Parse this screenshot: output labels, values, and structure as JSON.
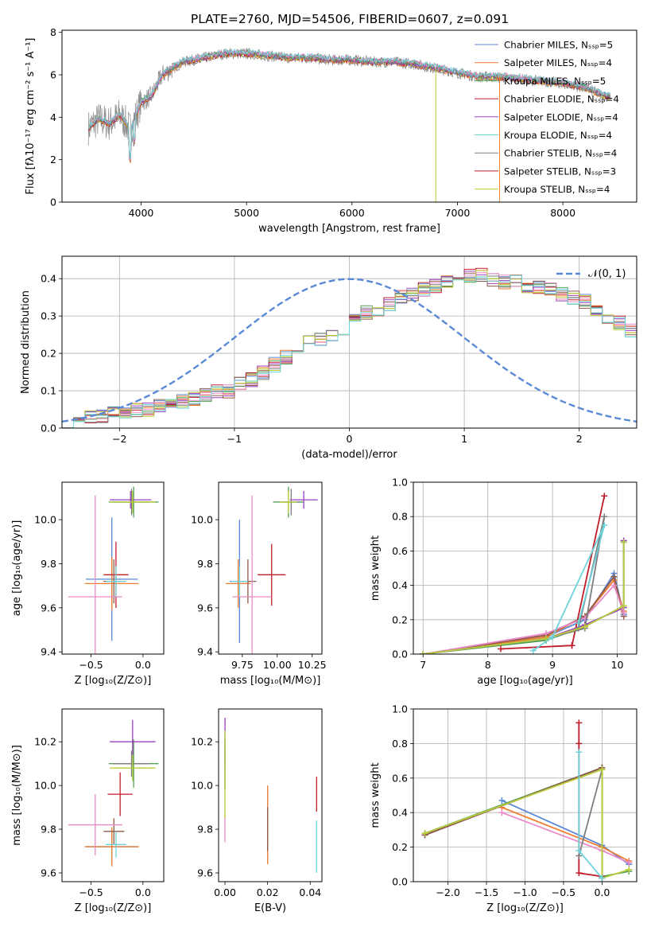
{
  "figure_title": "PLATE=2760, MJD=54506, FIBERID=0607, z=0.091",
  "model_colors": [
    "#5a8ad6",
    "#ef7e30",
    "#55a055",
    "#c01d2a",
    "#9b3fbf",
    "#8e5b4a",
    "#e98ac8",
    "#7e7e7e",
    "#b9cd3a",
    "#6ed3db"
  ],
  "chart_data": [
    {
      "id": "spectrum",
      "type": "line",
      "xlabel": "wavelength [Angstrom, rest frame]",
      "ylabel": "Flux [fλ10⁻¹⁷ erg cm⁻² s⁻¹ A⁻¹]",
      "xlim": [
        3250,
        8700
      ],
      "ylim": [
        0,
        8.1
      ],
      "xticks": [
        4000,
        5000,
        6000,
        7000,
        8000
      ],
      "yticks": [
        0,
        2,
        4,
        6,
        8
      ],
      "grid": false,
      "legend_position": "right",
      "continuum_x": [
        3500,
        3600,
        3700,
        3800,
        3900,
        4000,
        4100,
        4200,
        4400,
        4600,
        4800,
        5000,
        5200,
        5400,
        5600,
        5800,
        6000,
        6200,
        6400,
        6600,
        6800,
        7000,
        7200,
        7400,
        7600,
        7800,
        8000,
        8200,
        8400
      ],
      "continuum_y": [
        3.5,
        3.9,
        3.7,
        4.1,
        3.4,
        4.7,
        5.0,
        6.0,
        6.6,
        6.8,
        7.0,
        7.0,
        6.9,
        6.8,
        6.8,
        6.7,
        6.7,
        6.6,
        6.6,
        6.5,
        6.3,
        6.1,
        5.9,
        5.9,
        5.8,
        5.7,
        5.6,
        5.4,
        5.0
      ],
      "series": [
        {
          "name": "Chabrier MILES, Nₛₛₚ=5"
        },
        {
          "name": "Salpeter MILES, Nₛₛₚ=4"
        },
        {
          "name": "Kroupa MILES, Nₛₛₚ=5"
        },
        {
          "name": "Chabrier ELODIE, Nₛₛₚ=4"
        },
        {
          "name": "Salpeter ELODIE, Nₛₛₚ=4"
        },
        {
          "name": "Kroupa ELODIE, Nₛₛₚ=4"
        },
        {
          "name": "Chabrier STELIB, Nₛₛₚ=4"
        },
        {
          "name": "Salpeter STELIB, Nₛₛₚ=3"
        },
        {
          "name": "Kroupa STELIB, Nₛₛₚ=4"
        }
      ]
    },
    {
      "id": "residuals",
      "type": "line",
      "xlabel": "(data-model)/error",
      "ylabel": "Normed distribution",
      "xlim": [
        -2.5,
        2.5
      ],
      "ylim": [
        0,
        0.46
      ],
      "xticks": [
        -2,
        -1,
        0,
        1,
        2
      ],
      "yticks": [
        0.0,
        0.1,
        0.2,
        0.3,
        0.4
      ],
      "grid": true,
      "legend_position": "top-right",
      "gaussian_label": "𝒩(0, 1)",
      "bin_width": 0.1,
      "hist_base": [
        0.02,
        0.02,
        0.03,
        0.03,
        0.04,
        0.04,
        0.05,
        0.05,
        0.06,
        0.07,
        0.07,
        0.08,
        0.09,
        0.1,
        0.1,
        0.12,
        0.13,
        0.15,
        0.17,
        0.19,
        0.21,
        0.23,
        0.24,
        0.25,
        0.27,
        0.29,
        0.31,
        0.32,
        0.33,
        0.35,
        0.36,
        0.37,
        0.38,
        0.39,
        0.4,
        0.41,
        0.41,
        0.4,
        0.39,
        0.39,
        0.38,
        0.38,
        0.37,
        0.36,
        0.35,
        0.34,
        0.32,
        0.3,
        0.28,
        0.26,
        0.25,
        0.24,
        0.22,
        0.2,
        0.18,
        0.16,
        0.14,
        0.12,
        0.11,
        0.1,
        0.09,
        0.08,
        0.07,
        0.07,
        0.06,
        0.05,
        0.05,
        0.04,
        0.04,
        0.03
      ]
    },
    {
      "id": "age-vs-Z",
      "type": "scatter",
      "xlabel": "Z [log₁₀(Z/Z⊙)]",
      "ylabel": "age  [log₁₀(age/yr)]",
      "xlim": [
        -0.78,
        0.2
      ],
      "ylim": [
        9.39,
        10.17
      ],
      "xticks": [
        -0.5,
        0.0
      ],
      "yticks": [
        9.4,
        9.6,
        9.8,
        10.0
      ],
      "grid": false,
      "points": [
        {
          "x": -0.3,
          "y": 9.73,
          "ex": 0.25,
          "ey": 0.28
        },
        {
          "x": -0.3,
          "y": 9.71,
          "ex": 0.26,
          "ey": 0.12
        },
        {
          "x": -0.09,
          "y": 10.08,
          "ex": 0.24,
          "ey": 0.07
        },
        {
          "x": -0.26,
          "y": 9.75,
          "ex": 0.12,
          "ey": 0.15
        },
        {
          "x": -0.12,
          "y": 10.09,
          "ex": 0.2,
          "ey": 0.04
        },
        {
          "x": -0.28,
          "y": 9.72,
          "ex": 0.1,
          "ey": 0.1
        },
        {
          "x": -0.46,
          "y": 9.65,
          "ex": 0.26,
          "ey": 0.46
        },
        {
          "x": -0.11,
          "y": 10.08,
          "ex": 0.18,
          "ey": 0.06
        },
        {
          "x": -0.1,
          "y": 10.08,
          "ex": 0.22,
          "ey": 0.05
        },
        {
          "x": -0.26,
          "y": 9.72,
          "ex": 0.1,
          "ey": 0.07
        }
      ]
    },
    {
      "id": "age-vs-mass",
      "type": "scatter",
      "xlabel": "mass [log₁₀(M/M⊙)]",
      "ylabel": "",
      "xlim": [
        9.58,
        10.32
      ],
      "ylim": [
        9.39,
        10.17
      ],
      "xticks": [
        9.75,
        10.0,
        10.25
      ],
      "yticks": [
        9.4,
        9.6,
        9.8,
        10.0
      ],
      "grid": false,
      "points": [
        {
          "x": 9.73,
          "y": 9.72,
          "ex": 0.07,
          "ey": 0.28
        },
        {
          "x": 9.72,
          "y": 9.71,
          "ex": 0.09,
          "ey": 0.11
        },
        {
          "x": 10.08,
          "y": 10.08,
          "ex": 0.11,
          "ey": 0.07
        },
        {
          "x": 9.96,
          "y": 9.75,
          "ex": 0.1,
          "ey": 0.14
        },
        {
          "x": 10.19,
          "y": 10.09,
          "ex": 0.1,
          "ey": 0.04
        },
        {
          "x": 9.79,
          "y": 9.72,
          "ex": 0.06,
          "ey": 0.1
        },
        {
          "x": 9.82,
          "y": 9.65,
          "ex": 0.14,
          "ey": 0.46
        },
        {
          "x": 10.1,
          "y": 10.08,
          "ex": 0.06,
          "ey": 0.06
        },
        {
          "x": 10.08,
          "y": 10.08,
          "ex": 0.06,
          "ey": 0.05
        },
        {
          "x": 9.73,
          "y": 9.72,
          "ex": 0.06,
          "ey": 0.07
        }
      ]
    },
    {
      "id": "mass-weight-vs-age",
      "type": "line",
      "xlabel": "age  [log₁₀(age/yr)]",
      "ylabel": "mass weight",
      "xlim": [
        6.85,
        10.3
      ],
      "ylim": [
        0,
        1.0
      ],
      "xticks": [
        7,
        8,
        9,
        10
      ],
      "yticks": [
        0.0,
        0.2,
        0.4,
        0.6,
        0.8,
        1.0
      ],
      "grid": true,
      "series": [
        {
          "x": [
            7.0,
            8.9,
            9.5,
            9.95,
            10.1
          ],
          "y": [
            0.0,
            0.1,
            0.2,
            0.47,
            0.23
          ]
        },
        {
          "x": [
            7.0,
            8.9,
            9.5,
            9.95,
            10.1
          ],
          "y": [
            0.0,
            0.1,
            0.22,
            0.43,
            0.25
          ]
        },
        {
          "x": [
            7.0,
            8.9,
            9.5,
            10.1,
            10.1
          ],
          "y": [
            0.0,
            0.08,
            0.16,
            0.28,
            0.66
          ]
        },
        {
          "x": [
            8.2,
            9.3,
            9.8,
            9.3
          ],
          "y": [
            0.03,
            0.05,
            0.92,
            0.05
          ]
        },
        {
          "x": [
            7.0,
            8.9,
            9.5,
            10.1,
            10.1
          ],
          "y": [
            0.0,
            0.09,
            0.17,
            0.27,
            0.66
          ]
        },
        {
          "x": [
            7.0,
            8.9,
            9.5,
            9.95,
            10.1
          ],
          "y": [
            0.0,
            0.11,
            0.22,
            0.45,
            0.22
          ]
        },
        {
          "x": [
            7.0,
            8.9,
            9.5,
            9.95,
            10.1
          ],
          "y": [
            0.0,
            0.12,
            0.21,
            0.4,
            0.24
          ]
        },
        {
          "x": [
            7.0,
            8.9,
            9.5,
            9.8,
            9.4
          ],
          "y": [
            0.0,
            0.09,
            0.15,
            0.8,
            0.15
          ]
        },
        {
          "x": [
            7.0,
            8.9,
            9.5,
            10.1,
            10.1
          ],
          "y": [
            0.0,
            0.09,
            0.16,
            0.28,
            0.65
          ]
        },
        {
          "x": [
            8.7,
            9.0,
            9.8,
            9.4
          ],
          "y": [
            0.02,
            0.1,
            0.75,
            0.18
          ]
        }
      ]
    },
    {
      "id": "mass-vs-Z",
      "type": "scatter",
      "xlabel": "Z [log₁₀(Z/Z⊙)]",
      "ylabel": "mass [log₁₀(M/M⊙)]",
      "xlim": [
        -0.78,
        0.2
      ],
      "ylim": [
        9.56,
        10.35
      ],
      "xticks": [
        -0.5,
        0.0
      ],
      "yticks": [
        9.6,
        9.8,
        10.0,
        10.2
      ],
      "grid": false,
      "points": [
        {
          "x": -0.3,
          "y": 9.72,
          "ex": 0.25,
          "ey": 0.07
        },
        {
          "x": -0.3,
          "y": 9.72,
          "ex": 0.26,
          "ey": 0.09
        },
        {
          "x": -0.09,
          "y": 10.1,
          "ex": 0.24,
          "ey": 0.11
        },
        {
          "x": -0.22,
          "y": 9.96,
          "ex": 0.12,
          "ey": 0.1
        },
        {
          "x": -0.1,
          "y": 10.2,
          "ex": 0.22,
          "ey": 0.1
        },
        {
          "x": -0.28,
          "y": 9.79,
          "ex": 0.1,
          "ey": 0.06
        },
        {
          "x": -0.46,
          "y": 9.82,
          "ex": 0.26,
          "ey": 0.14
        },
        {
          "x": -0.11,
          "y": 10.1,
          "ex": 0.18,
          "ey": 0.06
        },
        {
          "x": -0.1,
          "y": 10.08,
          "ex": 0.22,
          "ey": 0.06
        },
        {
          "x": -0.26,
          "y": 9.73,
          "ex": 0.1,
          "ey": 0.06
        }
      ]
    },
    {
      "id": "mass-vs-EBV",
      "type": "scatter",
      "xlabel": "E(B-V)",
      "ylabel": "",
      "xlim": [
        -0.003,
        0.0455
      ],
      "ylim": [
        9.56,
        10.35
      ],
      "xticks": [
        0.0,
        0.02,
        0.04
      ],
      "yticks": [
        9.6,
        9.8,
        10.0,
        10.2
      ],
      "grid": false,
      "points": [
        {
          "x": 0.02,
          "y": 9.82,
          "ex": 0,
          "ey": 0.17
        },
        {
          "x": 0.02,
          "y": 9.82,
          "ex": 0,
          "ey": 0.18
        },
        {
          "x": 0.0,
          "y": 10.1,
          "ex": 0,
          "ey": 0.12
        },
        {
          "x": 0.043,
          "y": 9.96,
          "ex": 0,
          "ey": 0.08
        },
        {
          "x": 0.0,
          "y": 10.2,
          "ex": 0,
          "ey": 0.11
        },
        {
          "x": 0.02,
          "y": 9.8,
          "ex": 0,
          "ey": 0.1
        },
        {
          "x": 0.0,
          "y": 9.8,
          "ex": 0,
          "ey": 0.06
        },
        {
          "x": 0.0,
          "y": 10.08,
          "ex": 0,
          "ey": 0.1
        },
        {
          "x": 0.0,
          "y": 10.05,
          "ex": 0,
          "ey": 0.2
        },
        {
          "x": 0.043,
          "y": 9.72,
          "ex": 0,
          "ey": 0.12
        }
      ]
    },
    {
      "id": "mass-weight-vs-Z",
      "type": "line",
      "xlabel": "Z [log₁₀(Z/Z⊙)]",
      "ylabel": "mass weight",
      "xlim": [
        -2.45,
        0.45
      ],
      "ylim": [
        0,
        1.0
      ],
      "xticks": [
        -2.0,
        -1.5,
        -1.0,
        -0.5,
        0.0
      ],
      "yticks": [
        0.0,
        0.2,
        0.4,
        0.6,
        0.8,
        1.0
      ],
      "grid": true,
      "series": [
        {
          "x": [
            -1.3,
            0.0,
            0.35
          ],
          "y": [
            0.47,
            0.21,
            0.1
          ]
        },
        {
          "x": [
            -1.3,
            0.0,
            0.35
          ],
          "y": [
            0.43,
            0.2,
            0.12
          ]
        },
        {
          "x": [
            -2.3,
            0.0,
            0.0,
            0.35
          ],
          "y": [
            0.28,
            0.66,
            0.03,
            0.06
          ]
        },
        {
          "x": [
            -0.3,
            -0.3,
            -0.3,
            0.0
          ],
          "y": [
            0.92,
            0.8,
            0.05,
            0.03
          ]
        },
        {
          "x": [
            -2.3,
            0.0,
            0.0
          ],
          "y": [
            0.27,
            0.66,
            0.02
          ]
        },
        {
          "x": [
            -2.3,
            0.0,
            0.0
          ],
          "y": [
            0.27,
            0.66,
            0.03
          ]
        },
        {
          "x": [
            -1.3,
            0.0,
            0.35
          ],
          "y": [
            0.4,
            0.18,
            0.11
          ]
        },
        {
          "x": [
            -0.3,
            0.0,
            0.0
          ],
          "y": [
            0.15,
            0.65,
            0.02
          ]
        },
        {
          "x": [
            -2.3,
            0.0,
            0.0,
            0.35
          ],
          "y": [
            0.28,
            0.65,
            0.02,
            0.07
          ]
        },
        {
          "x": [
            -0.3,
            -0.3,
            0.0
          ],
          "y": [
            0.75,
            0.18,
            0.02
          ]
        }
      ]
    }
  ]
}
